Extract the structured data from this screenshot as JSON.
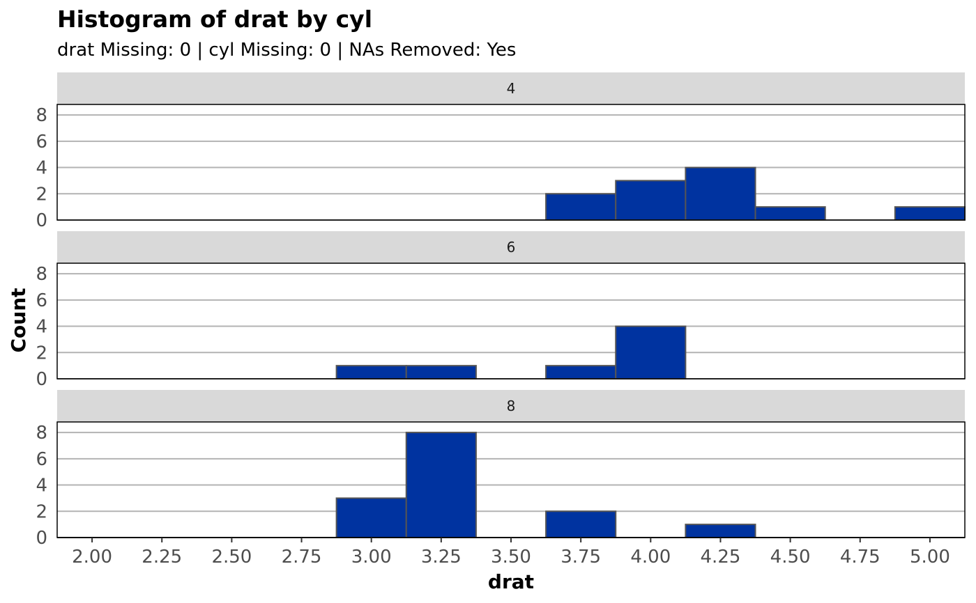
{
  "chart_data": {
    "type": "bar",
    "title": "Histogram of drat by cyl",
    "subtitle": "drat Missing: 0 | cyl Missing: 0 | NAs Removed: Yes",
    "xlabel": "drat",
    "ylabel": "Count",
    "xlim": [
      1.875,
      5.125
    ],
    "ylim": [
      0,
      8.8
    ],
    "x_ticks": [
      "2.00",
      "2.25",
      "2.50",
      "2.75",
      "3.00",
      "3.25",
      "3.50",
      "3.75",
      "4.00",
      "4.25",
      "4.50",
      "4.75",
      "5.00"
    ],
    "y_ticks": [
      "0",
      "2",
      "4",
      "6",
      "8"
    ],
    "bin_width": 0.25,
    "bin_centers": [
      2.0,
      2.25,
      2.5,
      2.75,
      3.0,
      3.25,
      3.5,
      3.75,
      4.0,
      4.25,
      4.5,
      4.75,
      5.0
    ],
    "bar_color": "#0033A0",
    "bar_border_color": "#555555",
    "grid": true,
    "facets": [
      {
        "label": "4",
        "values": [
          0,
          0,
          0,
          0,
          0,
          0,
          0,
          2,
          3,
          4,
          1,
          0,
          1
        ]
      },
      {
        "label": "6",
        "values": [
          0,
          0,
          0,
          0,
          1,
          1,
          0,
          1,
          4,
          0,
          0,
          0,
          0
        ]
      },
      {
        "label": "8",
        "values": [
          0,
          0,
          0,
          0,
          3,
          8,
          0,
          2,
          0,
          1,
          0,
          0,
          0
        ]
      }
    ]
  }
}
